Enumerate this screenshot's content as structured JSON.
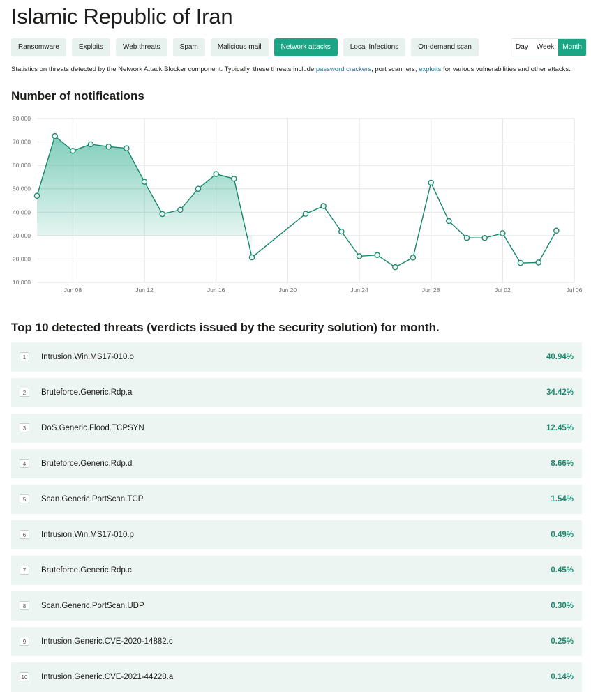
{
  "page": {
    "title": "Islamic Republic of Iran"
  },
  "tabs": [
    {
      "label": "Ransomware",
      "active": false
    },
    {
      "label": "Exploits",
      "active": false
    },
    {
      "label": "Web threats",
      "active": false
    },
    {
      "label": "Spam",
      "active": false
    },
    {
      "label": "Malicious mail",
      "active": false
    },
    {
      "label": "Network attacks",
      "active": true
    },
    {
      "label": "Local Infections",
      "active": false
    },
    {
      "label": "On-demand scan",
      "active": false
    }
  ],
  "periods": [
    {
      "label": "Day",
      "active": false
    },
    {
      "label": "Week",
      "active": false
    },
    {
      "label": "Month",
      "active": true
    }
  ],
  "description": {
    "part1": "Statistics on threats detected by the Network Attack Blocker component. Typically, these threats include ",
    "link1": "password crackers",
    "part2": ", port scanners, ",
    "link2": "exploits",
    "part3": " for various vulnerabilities and other attacks."
  },
  "chart_section": {
    "heading": "Number of notifications"
  },
  "chart_data": {
    "type": "area",
    "title": "Number of notifications",
    "x": [
      "Jun 06",
      "Jun 07",
      "Jun 08",
      "Jun 09",
      "Jun 10",
      "Jun 11",
      "Jun 12",
      "Jun 13",
      "Jun 14",
      "Jun 15",
      "Jun 16",
      "Jun 17",
      "Jun 18",
      "Jun 21",
      "Jun 22",
      "Jun 23",
      "Jun 24",
      "Jun 25",
      "Jun 26",
      "Jun 27",
      "Jun 28",
      "Jun 29",
      "Jun 30",
      "Jul 01",
      "Jul 02",
      "Jul 03",
      "Jul 04",
      "Jul 05"
    ],
    "day_index": [
      0,
      1,
      2,
      3,
      4,
      5,
      6,
      7,
      8,
      9,
      10,
      11,
      12,
      15,
      16,
      17,
      18,
      19,
      20,
      21,
      22,
      23,
      24,
      25,
      26,
      27,
      28,
      29
    ],
    "values": [
      47000,
      72500,
      66200,
      69000,
      68000,
      67300,
      53000,
      39200,
      41000,
      50000,
      56300,
      54300,
      20700,
      39300,
      42600,
      31700,
      21200,
      21700,
      16500,
      20600,
      52600,
      36200,
      29000,
      29000,
      31000,
      18300,
      18500,
      32100
    ],
    "shaded_through_index": 12,
    "xticks": [
      "Jun 08",
      "Jun 12",
      "Jun 16",
      "Jun 20",
      "Jun 24",
      "Jun 28",
      "Jul 02",
      "Jul 06"
    ],
    "xtick_day_index": [
      2,
      6,
      10,
      14,
      18,
      22,
      26,
      30
    ],
    "yticks": [
      "10,000",
      "20,000",
      "30,000",
      "40,000",
      "50,000",
      "60,000",
      "70,000",
      "80,000"
    ],
    "ylim": [
      10000,
      80000
    ],
    "xlim": [
      0,
      30
    ],
    "grid": true,
    "line_color": "#16866b",
    "fill_color": "#1aa685"
  },
  "threats_section": {
    "heading": "Top 10 detected threats (verdicts issued by the security solution) for month.",
    "items": [
      {
        "rank": "1",
        "name": "Intrusion.Win.MS17-010.o",
        "percent": "40.94%"
      },
      {
        "rank": "2",
        "name": "Bruteforce.Generic.Rdp.a",
        "percent": "34.42%"
      },
      {
        "rank": "3",
        "name": "DoS.Generic.Flood.TCPSYN",
        "percent": "12.45%"
      },
      {
        "rank": "4",
        "name": "Bruteforce.Generic.Rdp.d",
        "percent": "8.66%"
      },
      {
        "rank": "5",
        "name": "Scan.Generic.PortScan.TCP",
        "percent": "1.54%"
      },
      {
        "rank": "6",
        "name": "Intrusion.Win.MS17-010.p",
        "percent": "0.49%"
      },
      {
        "rank": "7",
        "name": "Bruteforce.Generic.Rdp.c",
        "percent": "0.45%"
      },
      {
        "rank": "8",
        "name": "Scan.Generic.PortScan.UDP",
        "percent": "0.30%"
      },
      {
        "rank": "9",
        "name": "Intrusion.Generic.CVE-2020-14882.c",
        "percent": "0.25%"
      },
      {
        "rank": "10",
        "name": "Intrusion.Generic.CVE-2021-44228.a",
        "percent": "0.14%"
      }
    ]
  },
  "colors": {
    "accent": "#1aa685",
    "tab_bg": "#e7f1ee",
    "row_bg": "#edf5f2",
    "link": "#1a7d9e"
  }
}
